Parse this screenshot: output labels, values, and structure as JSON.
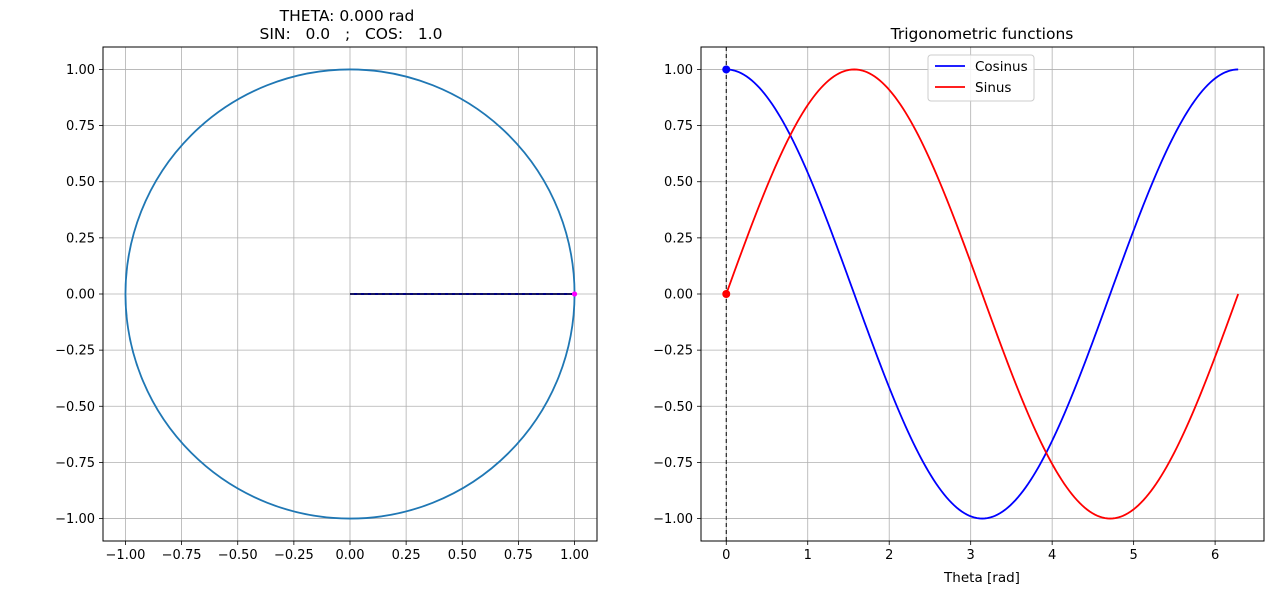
{
  "chart_data": [
    {
      "type": "line",
      "title_line1": "THETA:  0.000 rad",
      "title_line2": "SIN:   0.0   ;   COS:   1.0",
      "xlabel": "",
      "ylabel": "",
      "xlim": [
        -1.1,
        1.1
      ],
      "ylim": [
        -1.1,
        1.1
      ],
      "xticks": [
        -1.0,
        -0.75,
        -0.5,
        -0.25,
        0.0,
        0.25,
        0.5,
        0.75,
        1.0
      ],
      "xtick_labels": [
        "−1.00",
        "−0.75",
        "−0.50",
        "−0.25",
        "0.00",
        "0.25",
        "0.50",
        "0.75",
        "1.00"
      ],
      "yticks": [
        1.0,
        0.75,
        0.5,
        0.25,
        0.0,
        -0.25,
        -0.5,
        -0.75,
        -1.0
      ],
      "ytick_labels": [
        "1.00",
        "0.75",
        "0.50",
        "0.25",
        "0.00",
        "−0.25",
        "−0.50",
        "−0.75",
        "−1.00"
      ],
      "grid": true,
      "series": [
        {
          "kind": "unit-circle",
          "radius": 1.0,
          "color": "#1f77b4"
        },
        {
          "kind": "radius-line",
          "x": [
            0.0,
            1.0
          ],
          "y": [
            0.0,
            0.0
          ],
          "color": "#000080"
        },
        {
          "kind": "point",
          "x": 1.0,
          "y": 0.0,
          "color": "#ff00ff"
        }
      ]
    },
    {
      "type": "line",
      "title": "Trigonometric functions",
      "xlabel": "Theta [rad]",
      "ylabel": "",
      "xlim": [
        -0.31,
        6.6
      ],
      "ylim": [
        -1.1,
        1.1
      ],
      "xticks": [
        0,
        1,
        2,
        3,
        4,
        5,
        6
      ],
      "xtick_labels": [
        "0",
        "1",
        "2",
        "3",
        "4",
        "5",
        "6"
      ],
      "yticks": [
        1.0,
        0.75,
        0.5,
        0.25,
        0.0,
        -0.25,
        -0.5,
        -0.75,
        -1.0
      ],
      "ytick_labels": [
        "1.00",
        "0.75",
        "0.50",
        "0.25",
        "0.00",
        "−0.25",
        "−0.50",
        "−0.75",
        "−1.00"
      ],
      "grid": true,
      "legend_position": "top-center",
      "series": [
        {
          "name": "Cosinus",
          "function": "cos",
          "x_range": [
            0,
            6.283
          ],
          "color": "#0000ff"
        },
        {
          "name": "Sinus",
          "function": "sin",
          "x_range": [
            0,
            6.283
          ],
          "color": "#ff0000"
        }
      ],
      "current_theta": 0.0,
      "markers": [
        {
          "series": "Cosinus",
          "x": 0.0,
          "y": 1.0,
          "color": "#0000ff"
        },
        {
          "series": "Sinus",
          "x": 0.0,
          "y": 0.0,
          "color": "#ff0000"
        }
      ],
      "vline": {
        "x": 0.0,
        "style": "dashed",
        "color": "#000000"
      }
    }
  ]
}
